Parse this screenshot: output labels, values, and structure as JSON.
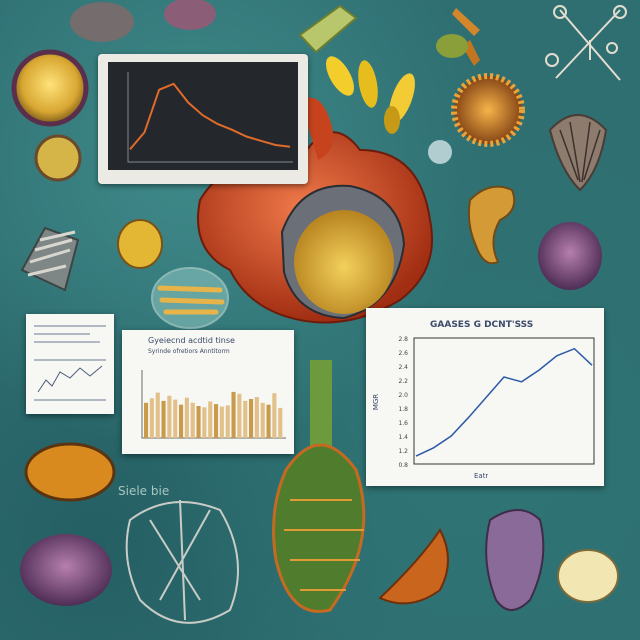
{
  "figures": {
    "right_card_title": "GAASES G DCNT'SSS",
    "right_card_xlabel": "Eatr",
    "right_card_ylabel": "MGR",
    "right_card_yticks": [
      "2.8",
      "2.6",
      "2.4",
      "2.2",
      "2.0",
      "1.8",
      "1.6",
      "1.4",
      "1.2",
      "0.8"
    ],
    "bar_card_title": "Gyeiecnd acdtid tinse",
    "bar_card_subtitle": "Syrinde ofretiors Anntitorm",
    "bottom_scribble": "Siele bie"
  },
  "scene": {
    "bar_values": [
      0.55,
      0.62,
      0.71,
      0.58,
      0.66,
      0.6,
      0.52,
      0.63,
      0.55,
      0.5,
      0.48,
      0.57,
      0.53,
      0.49,
      0.51,
      0.72,
      0.69,
      0.58,
      0.61,
      0.64,
      0.55,
      0.52,
      0.7,
      0.47
    ],
    "line_chart_values": [
      0.05,
      0.12,
      0.22,
      0.38,
      0.55,
      0.72,
      0.68,
      0.78,
      0.9,
      0.96,
      0.82
    ],
    "monitor_values": [
      0.15,
      0.35,
      0.85,
      0.92,
      0.7,
      0.55,
      0.45,
      0.38,
      0.3,
      0.25,
      0.2,
      0.18
    ]
  }
}
